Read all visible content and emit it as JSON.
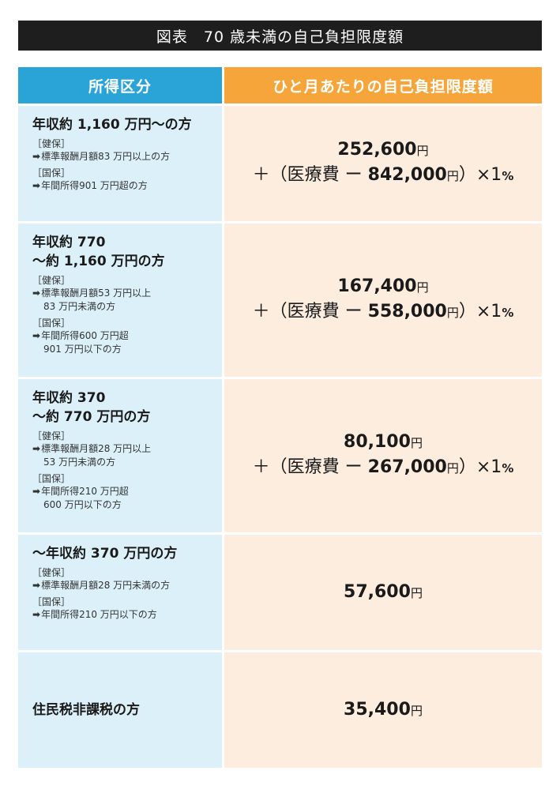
{
  "title": "図表　70 歳未満の自己負担限度額",
  "header": {
    "col1": "所得区分",
    "col2": "ひと月あたりの自己負担限度額"
  },
  "labels": {
    "kenpo": "［健保］",
    "kokuho": "［国保］",
    "arrow": "➡",
    "yen": "円",
    "plus_open": "＋（医療費 ー ",
    "close_mult": "）×1",
    "percent": "%"
  },
  "rows": [
    {
      "income": [
        "年収約 1,160 万円～の方"
      ],
      "kenpo": [
        "標準報酬月額83 万円以上の方"
      ],
      "kokuho": [
        "年間所得901 万円超の方"
      ],
      "base": "252,600",
      "threshold": "842,000"
    },
    {
      "income": [
        "年収約 770",
        "～約 1,160 万円の方"
      ],
      "kenpo": [
        "標準報酬月額53 万円以上",
        "83 万円未満の方"
      ],
      "kokuho": [
        "年間所得600 万円超",
        "901 万円以下の方"
      ],
      "base": "167,400",
      "threshold": "558,000"
    },
    {
      "income": [
        "年収約 370",
        "～約 770 万円の方"
      ],
      "kenpo": [
        "標準報酬月額28 万円以上",
        "53 万円未満の方"
      ],
      "kokuho": [
        "年間所得210 万円超",
        "600 万円以下の方"
      ],
      "base": "80,100",
      "threshold": "267,000"
    },
    {
      "income": [
        "～年収約 370 万円の方"
      ],
      "kenpo": [
        "標準報酬月額28 万円未満の方"
      ],
      "kokuho": [
        "年間所得210 万円以下の方"
      ],
      "base": "57,600"
    },
    {
      "income": [
        "住民税非課税の方"
      ],
      "base": "35,400"
    }
  ]
}
